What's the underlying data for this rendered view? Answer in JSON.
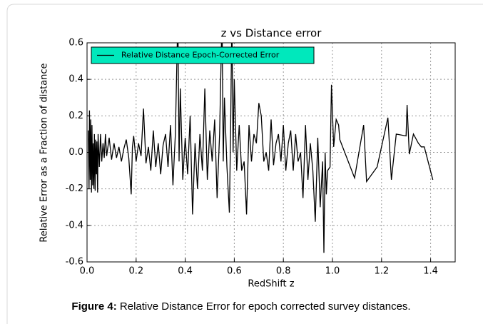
{
  "chart_data": {
    "type": "line",
    "title": "z vs Distance error",
    "xlabel": "RedShift z",
    "ylabel": "Relative Error as a Fraction of distance",
    "x": [
      0.005,
      0.008,
      0.01,
      0.013,
      0.015,
      0.018,
      0.02,
      0.023,
      0.025,
      0.028,
      0.03,
      0.033,
      0.035,
      0.038,
      0.04,
      0.043,
      0.045,
      0.05,
      0.055,
      0.06,
      0.065,
      0.07,
      0.075,
      0.08,
      0.09,
      0.1,
      0.11,
      0.12,
      0.13,
      0.14,
      0.15,
      0.16,
      0.17,
      0.18,
      0.185,
      0.19,
      0.2,
      0.21,
      0.22,
      0.23,
      0.24,
      0.25,
      0.26,
      0.27,
      0.28,
      0.29,
      0.3,
      0.31,
      0.32,
      0.33,
      0.34,
      0.35,
      0.36,
      0.37,
      0.375,
      0.38,
      0.39,
      0.4,
      0.41,
      0.42,
      0.43,
      0.44,
      0.45,
      0.46,
      0.47,
      0.48,
      0.49,
      0.5,
      0.51,
      0.52,
      0.53,
      0.54,
      0.55,
      0.555,
      0.56,
      0.57,
      0.58,
      0.585,
      0.59,
      0.595,
      0.6,
      0.61,
      0.62,
      0.63,
      0.64,
      0.65,
      0.66,
      0.67,
      0.68,
      0.69,
      0.7,
      0.71,
      0.72,
      0.73,
      0.74,
      0.75,
      0.76,
      0.77,
      0.78,
      0.79,
      0.8,
      0.81,
      0.82,
      0.83,
      0.84,
      0.85,
      0.86,
      0.87,
      0.88,
      0.89,
      0.9,
      0.91,
      0.92,
      0.93,
      0.94,
      0.95,
      0.96,
      0.965,
      0.97,
      0.975,
      0.98,
      0.99,
      0.996,
      1.005,
      1.015,
      1.025,
      1.03,
      1.09,
      1.127,
      1.139,
      1.182,
      1.226,
      1.24,
      1.26,
      1.3,
      1.304,
      1.313,
      1.33,
      1.35,
      1.362,
      1.374,
      1.409
    ],
    "series": [
      {
        "name": "Relative Distance Epoch-Corrected Error",
        "color": "#000000",
        "values": [
          0.12,
          -0.2,
          0.23,
          -0.15,
          0.18,
          -0.22,
          0.15,
          -0.18,
          0.05,
          -0.2,
          0.1,
          -0.21,
          0.07,
          -0.12,
          0.06,
          -0.22,
          0.1,
          -0.08,
          0.1,
          -0.05,
          0.05,
          -0.03,
          0.1,
          -0.02,
          0.08,
          -0.04,
          0.05,
          -0.03,
          0.03,
          -0.05,
          0.02,
          0.07,
          -0.03,
          -0.23,
          0.03,
          0.09,
          -0.05,
          0.05,
          -0.02,
          0.24,
          -0.06,
          0.03,
          -0.1,
          0.12,
          -0.08,
          0.05,
          -0.12,
          0.04,
          0.1,
          -0.08,
          0.15,
          -0.18,
          0.1,
          0.75,
          -0.05,
          0.35,
          -0.15,
          0.08,
          -0.12,
          0.2,
          -0.34,
          0.05,
          -0.2,
          0.1,
          -0.1,
          0.35,
          -0.15,
          0.12,
          -0.05,
          0.18,
          -0.25,
          0.1,
          0.75,
          -0.05,
          0.3,
          -0.08,
          -0.33,
          0.1,
          0.75,
          0.0,
          0.4,
          -0.1,
          0.15,
          -0.1,
          -0.05,
          -0.34,
          0.15,
          -0.05,
          0.1,
          0.05,
          0.27,
          0.2,
          -0.05,
          0.0,
          -0.1,
          0.18,
          -0.07,
          0.05,
          0.1,
          -0.05,
          0.15,
          -0.1,
          0.05,
          0.12,
          -0.1,
          0.1,
          -0.05,
          0.0,
          -0.25,
          0.15,
          -0.15,
          0.05,
          -0.1,
          -0.38,
          0.08,
          -0.3,
          -0.05,
          -0.55,
          0.0,
          -0.23,
          -0.1,
          -0.08,
          0.37,
          0.03,
          0.18,
          0.15,
          0.07,
          -0.14,
          0.15,
          -0.16,
          -0.08,
          0.19,
          -0.15,
          0.1,
          0.09,
          0.26,
          -0.01,
          0.1,
          0.05,
          0.03,
          0.03,
          -0.15
        ]
      }
    ],
    "xlim": [
      0,
      1.5
    ],
    "xticks": [
      {
        "value": 0,
        "label": "0.0"
      },
      0.2,
      0.4,
      0.6,
      0.8,
      {
        "value": 1,
        "label": "1.0"
      },
      1.2,
      1.4
    ],
    "ylim": [
      -0.6,
      0.6
    ],
    "yticks": [
      -0.6,
      -0.4,
      -0.2,
      {
        "value": 0,
        "label": "0.0"
      },
      0.2,
      0.4,
      0.6
    ],
    "grid": true,
    "legend": "upper left",
    "legend_color": "#00e8bc",
    "caption": {
      "label": "Figure 4:",
      "text": " Relative Distance Error for epoch corrected survey distances."
    }
  }
}
